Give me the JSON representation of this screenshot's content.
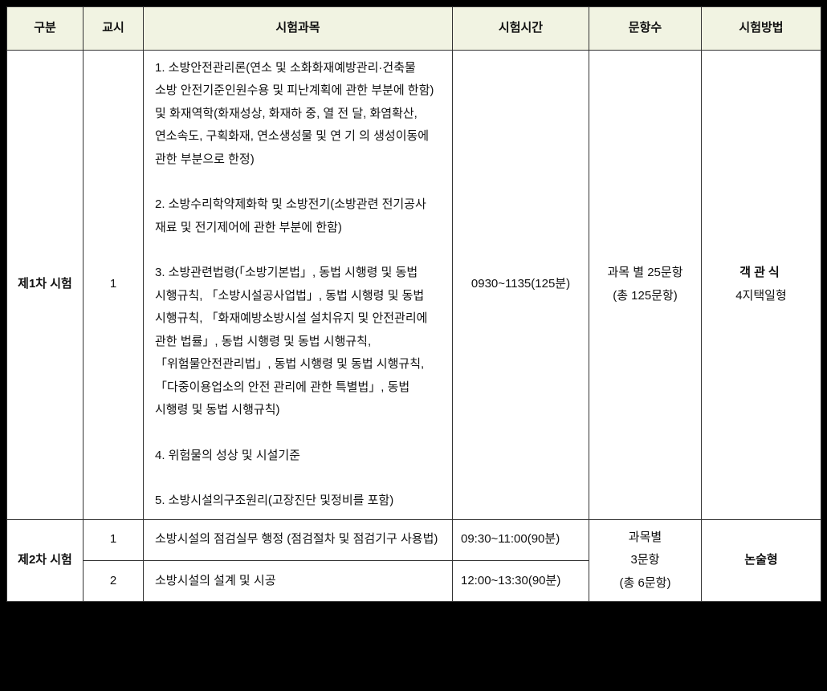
{
  "colors": {
    "header_bg": "#f1f3e2",
    "border": "#333333",
    "text": "#111111",
    "page_bg": "#000000",
    "table_bg": "#ffffff"
  },
  "headers": {
    "gubun": "구분",
    "gyosi": "교시",
    "subject": "시험과목",
    "time": "시험시간",
    "count": "문항수",
    "method": "시험방법"
  },
  "row1": {
    "gubun": "제1차 시험",
    "gyosi": "1",
    "subjects": {
      "s1": "1. 소방안전관리론(연소 및 소화화재예방관리·건축물 소방 안전기준인원수용 및 피난계획에 관한 부분에 한함) 및 화재역학(화재성상, 화재하 중, 열 전 달, 화염확산, 연소속도, 구획화재, 연소생성물 및 연 기 의 생성이동에 관한 부분으로 한정)",
      "s2": "2. 소방수리학약제화학 및 소방전기(소방관련 전기공사 재료 및 전기제어에 관한 부분에 한함)",
      "s3": "3. 소방관련법령(「소방기본법」, 동법 시행령 및 동법 시행규칙, 「소방시설공사업법」, 동법 시행령 및 동법 시행규칙, 「화재예방소방시설 설치유지 및 안전관리에 관한 법률」, 동법 시행령 및 동법 시행규칙, 「위험물안전관리법」, 동법 시행령 및 동법 시행규칙, 「다중이용업소의 안전 관리에 관한 특별법」, 동법 시행령 및 동법 시행규칙)",
      "s4": "4. 위험물의 성상 및 시설기준",
      "s5": "5. 소방시설의구조원리(고장진단 및정비를 포함)"
    },
    "time": "0930~1135(125분)",
    "count_line1": "과목 별 25문항",
    "count_line2": "(총 125문항)",
    "method_main": "객관식",
    "method_sub": "4지택일형"
  },
  "row2": {
    "gubun": "제2차 시험",
    "gyosi1": "1",
    "subject1": "소방시설의 점검실무 행정 (점검절차 및 점검기구 사용법)",
    "time1": "09:30~11:00(90분)",
    "gyosi2": "2",
    "subject2": "소방시설의 설계 및 시공",
    "time2": "12:00~13:30(90분)",
    "count_line1": "과목별",
    "count_line2": "3문항",
    "count_line3": "(총 6문항)",
    "method": "논술형"
  }
}
